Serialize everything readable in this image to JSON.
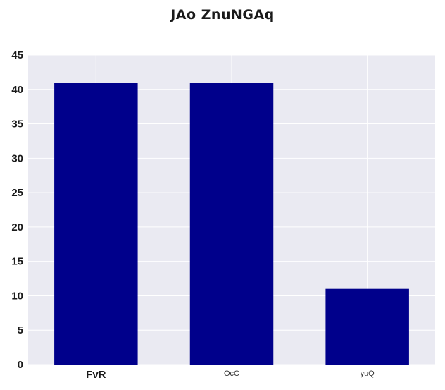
{
  "chart_data": {
    "type": "bar",
    "title": "JAo  ZnuNGAq",
    "categories": [
      "FvR",
      "OcC",
      "yuQ"
    ],
    "values": [
      41,
      41,
      11
    ],
    "ylim": [
      0,
      45
    ],
    "yticks": [
      0,
      5,
      10,
      15,
      20,
      25,
      30,
      35,
      40,
      45
    ],
    "xlabel": "",
    "ylabel": "",
    "grid": true,
    "colors": {
      "bar": "#00008b",
      "plot_background": "#eaeaf2",
      "grid": "#ffffff"
    }
  }
}
